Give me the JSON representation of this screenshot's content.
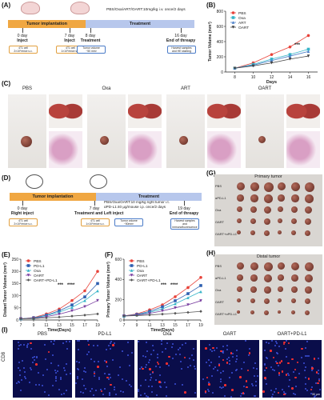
{
  "panels": {
    "A": {
      "letter": "(A)",
      "drug_text": "PBS/Oxa/ART/OART:10mg/kg i.v. once/2 days",
      "implant": "Tumor implantation",
      "treatment": "Treatment",
      "events": [
        {
          "top": "0 day",
          "bold": "Inject",
          "box": "4T1 cell\n2×10⁵/mice s.c."
        },
        {
          "top": "7 day",
          "bold": "Inject",
          "box": "4T1 cell\n1×10⁵/mice s.c."
        },
        {
          "top": "8 day",
          "bold": "Treatment",
          "box": "Tumor volume\n~50 mm³"
        },
        {
          "top": "16 day",
          "bold": "End of threapy",
          "box": "Harvest samples\nand HE staining"
        }
      ]
    },
    "B": {
      "letter": "(B)"
    },
    "C": {
      "letter": "(C)",
      "groups": [
        "PBS",
        "Oxa",
        "ART",
        "OART"
      ]
    },
    "D": {
      "letter": "(D)",
      "drug_text1": "PBS/Oxa/OART:10 mg/kg right tumor i.t.",
      "drug_text2": "αPD-L1:40 μg/mouse i.p. once/2 days",
      "implant": "Tumor implantation",
      "treatment": "Treatment",
      "events": [
        {
          "top": "0 day",
          "bold": "Right inject",
          "box": "4T1 cell\n2×10⁵/mice s.c."
        },
        {
          "top": "7 day",
          "bold": "Treatment\nand Left inject",
          "box": "4T1 cell\n1×10⁵/mice s.c."
        },
        {
          "top": "",
          "bold": "",
          "box": "Tumor volume\n~50mm³"
        },
        {
          "top": "19 day",
          "bold": "End of threapy",
          "box": "Harvest samples\nand immunofluorescence"
        }
      ]
    },
    "E": {
      "letter": "(E)"
    },
    "F": {
      "letter": "(F)"
    },
    "G": {
      "letter": "(G)",
      "title": "Primary tumor",
      "rows": [
        "PBS",
        "αPD-L1",
        "Oxa",
        "OART",
        "OART+αPD-L1"
      ]
    },
    "H": {
      "letter": "(H)",
      "title": "Distal tumor",
      "rows": [
        "PBS",
        "αPD-L1",
        "Oxa",
        "OART",
        "OART+αPD-L1"
      ]
    },
    "I": {
      "letter": "(I)",
      "groups": [
        "PBS",
        "PD-L1",
        "Oxa",
        "OART",
        "OART+PD-L1"
      ],
      "row_label": "CD8",
      "scale": "50 μm"
    }
  },
  "chart_data": [
    {
      "id": "B",
      "type": "line",
      "title": "",
      "xlabel": "Days",
      "ylabel": "Tumor Volume (mm³)",
      "x": [
        8,
        10,
        12,
        14,
        16
      ],
      "xlim": [
        7,
        17
      ],
      "ylim": [
        0,
        800
      ],
      "yticks": [
        0,
        200,
        400,
        600,
        800
      ],
      "legend": "top-left",
      "significance": "***",
      "series": [
        {
          "name": "PBS",
          "color": "#e8433a",
          "marker": "circle",
          "values": [
            50,
            120,
            230,
            330,
            480
          ]
        },
        {
          "name": "Oxa",
          "color": "#36b4c8",
          "marker": "square",
          "values": [
            50,
            100,
            170,
            230,
            300
          ]
        },
        {
          "name": "ART",
          "color": "#4a7fc8",
          "marker": "triangle",
          "values": [
            50,
            90,
            150,
            210,
            270
          ]
        },
        {
          "name": "OART",
          "color": "#444444",
          "marker": "triangle-down",
          "values": [
            50,
            80,
            120,
            170,
            210
          ]
        }
      ]
    },
    {
      "id": "E",
      "type": "line",
      "title": "",
      "xlabel": "Time(Days)",
      "ylabel": "Distant Tumor Volume (mm³)",
      "x": [
        7,
        9,
        11,
        13,
        15,
        17,
        19
      ],
      "xlim": [
        7,
        19
      ],
      "ylim": [
        0,
        250
      ],
      "yticks": [
        0,
        50,
        100,
        150,
        200,
        250
      ],
      "legend": "top-left",
      "significance": [
        "***",
        "****"
      ],
      "series": [
        {
          "name": "PBS",
          "color": "#e8433a",
          "marker": "circle",
          "values": [
            5,
            10,
            25,
            45,
            80,
            120,
            200
          ]
        },
        {
          "name": "PD-L1",
          "color": "#2e5fb0",
          "marker": "square",
          "values": [
            5,
            9,
            20,
            38,
            62,
            95,
            150
          ]
        },
        {
          "name": "Oxa",
          "color": "#36b4c8",
          "marker": "triangle",
          "values": [
            5,
            8,
            18,
            32,
            52,
            80,
            120
          ]
        },
        {
          "name": "OART",
          "color": "#7a3fa0",
          "marker": "triangle-down",
          "values": [
            5,
            7,
            14,
            24,
            38,
            55,
            80
          ]
        },
        {
          "name": "OART+PD-L1",
          "color": "#555555",
          "marker": "diamond",
          "values": [
            5,
            6,
            9,
            12,
            16,
            20,
            25
          ]
        }
      ]
    },
    {
      "id": "F",
      "type": "line",
      "title": "",
      "xlabel": "Time(Days)",
      "ylabel": "Primary Tumor Volume (mm³)",
      "x": [
        7,
        9,
        11,
        13,
        15,
        17,
        19
      ],
      "xlim": [
        7,
        19
      ],
      "ylim": [
        0,
        600
      ],
      "yticks": [
        0,
        200,
        400,
        600
      ],
      "legend": "top-left",
      "significance": [
        "***",
        "****"
      ],
      "series": [
        {
          "name": "PBS",
          "color": "#e8433a",
          "marker": "circle",
          "values": [
            40,
            60,
            100,
            150,
            230,
            320,
            420
          ]
        },
        {
          "name": "PD-L1",
          "color": "#2e5fb0",
          "marker": "square",
          "values": [
            40,
            55,
            85,
            130,
            190,
            260,
            340
          ]
        },
        {
          "name": "Oxa",
          "color": "#36b4c8",
          "marker": "triangle",
          "values": [
            40,
            50,
            75,
            110,
            160,
            220,
            280
          ]
        },
        {
          "name": "OART",
          "color": "#7a3fa0",
          "marker": "triangle-down",
          "values": [
            40,
            48,
            65,
            90,
            120,
            150,
            190
          ]
        },
        {
          "name": "OART+PD-L1",
          "color": "#555555",
          "marker": "diamond",
          "values": [
            40,
            44,
            50,
            58,
            66,
            75,
            85
          ]
        }
      ]
    }
  ]
}
